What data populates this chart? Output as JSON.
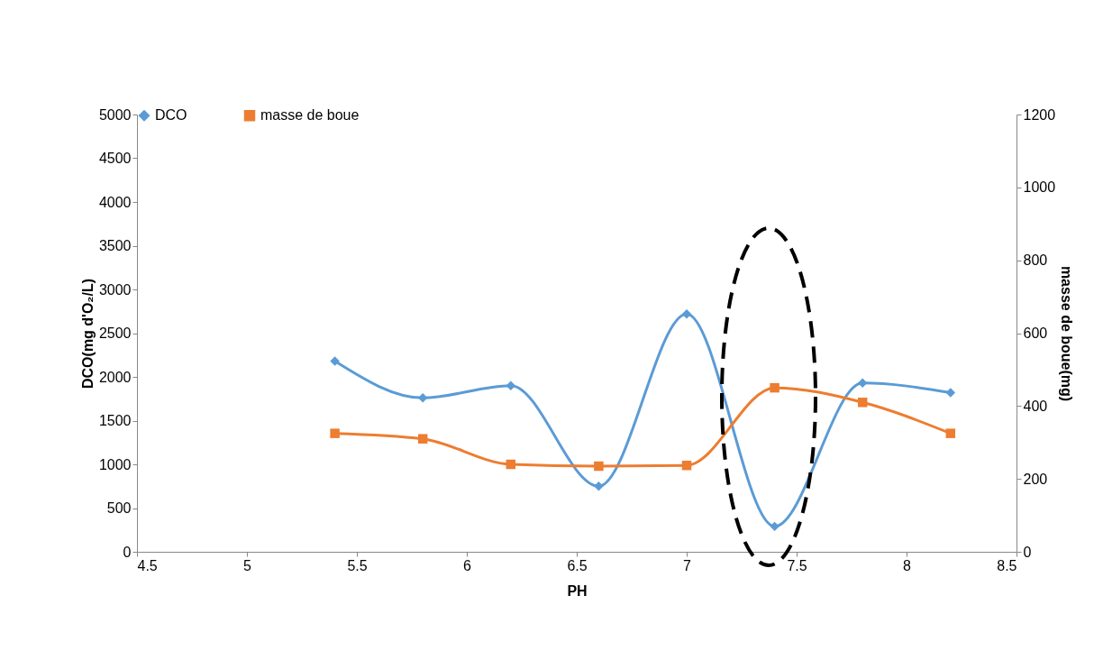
{
  "chart_data": {
    "type": "line",
    "xlabel": "PH",
    "ylabel": "DCO(mg d'O₂/L)",
    "y2label": "masse de boue(mg)",
    "xlim": [
      4.5,
      8.5
    ],
    "xticks": [
      4.5,
      5,
      5.5,
      6,
      6.5,
      7,
      7.5,
      8,
      8.5
    ],
    "ylim": [
      0,
      5000
    ],
    "yticks": [
      0,
      500,
      1000,
      1500,
      2000,
      2500,
      3000,
      3500,
      4000,
      4500,
      5000
    ],
    "y2lim": [
      0,
      1200
    ],
    "y2ticks": [
      0,
      200,
      400,
      600,
      800,
      1000,
      1200
    ],
    "x": [
      5.4,
      5.8,
      6.2,
      6.6,
      7.0,
      7.4,
      7.8,
      8.2
    ],
    "series": [
      {
        "name": "DCO",
        "color": "#5b9bd5",
        "marker": "diamond",
        "values": [
          2180,
          1760,
          1900,
          750,
          2720,
          290,
          1930,
          1820
        ]
      },
      {
        "name": "masse de boue",
        "color": "#ed7d31",
        "marker": "square",
        "axis": "y2",
        "values": [
          325,
          310,
          240,
          235,
          237,
          450,
          410,
          325
        ]
      }
    ],
    "legend": "top",
    "grid": false,
    "line_style": "solid"
  }
}
